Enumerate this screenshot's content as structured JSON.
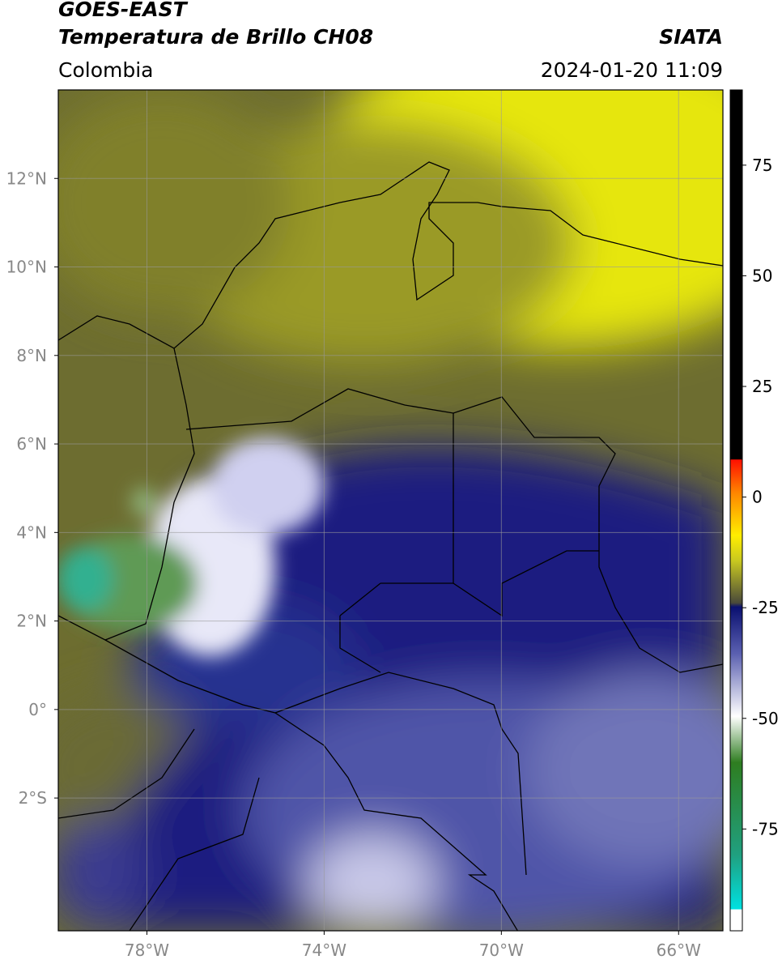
{
  "header": {
    "title": "GOES-EAST",
    "subtitle": "Temperatura de Brillo CH08",
    "region": "Colombia",
    "source": "SIATA",
    "datetime": "2024-01-20 11:09"
  },
  "map": {
    "xlim": [
      -80,
      -65
    ],
    "ylim": [
      -5,
      14
    ],
    "xticks": [
      {
        "value": -78,
        "label": "78°W"
      },
      {
        "value": -74,
        "label": "74°W"
      },
      {
        "value": -70,
        "label": "70°W"
      },
      {
        "value": -66,
        "label": "66°W"
      }
    ],
    "yticks": [
      {
        "value": 12,
        "label": "12°N"
      },
      {
        "value": 10,
        "label": "10°N"
      },
      {
        "value": 8,
        "label": "8°N"
      },
      {
        "value": 6,
        "label": "6°N"
      },
      {
        "value": 4,
        "label": "4°N"
      },
      {
        "value": 2,
        "label": "2°N"
      },
      {
        "value": 0,
        "label": "0°"
      },
      {
        "value": -2,
        "label": "2°S"
      }
    ]
  },
  "colorbar": {
    "lim": [
      -98,
      92
    ],
    "ticks": [
      75,
      50,
      25,
      0,
      -25,
      -50,
      -75
    ]
  }
}
